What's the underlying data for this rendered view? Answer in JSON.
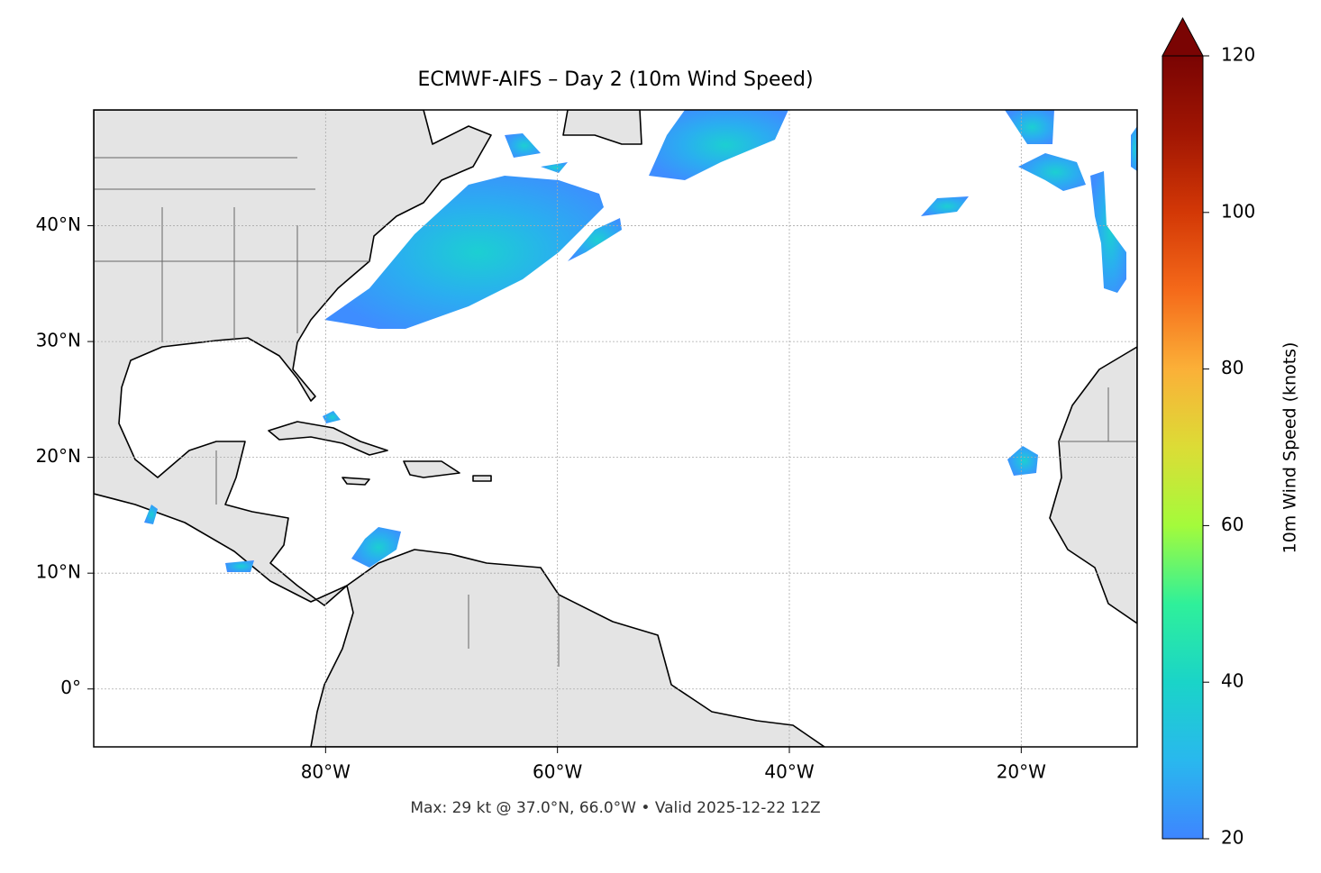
{
  "chart_data": {
    "type": "map",
    "title": "ECMWF-AIFS – Day 2 (10m Wind Speed)",
    "footer": "Max: 29 kt @ 37.0°N, 66.0°W • Valid 2025-12-22 12Z",
    "xlim": [
      -100,
      -10
    ],
    "ylim": [
      -5,
      50
    ],
    "xticks": [
      {
        "value": -80,
        "label": "80°W"
      },
      {
        "value": -60,
        "label": "60°W"
      },
      {
        "value": -40,
        "label": "40°W"
      },
      {
        "value": -20,
        "label": "20°W"
      }
    ],
    "yticks": [
      {
        "value": 0,
        "label": "0°"
      },
      {
        "value": 10,
        "label": "10°N"
      },
      {
        "value": 20,
        "label": "20°N"
      },
      {
        "value": 30,
        "label": "30°N"
      },
      {
        "value": 40,
        "label": "40°N"
      }
    ],
    "grid": true,
    "colorbar": {
      "label": "10m Wind Speed (knots)",
      "lim": [
        20,
        120
      ],
      "ticks": [
        20,
        40,
        60,
        80,
        100,
        120
      ],
      "extend": "max",
      "colors": [
        "#3e85ff",
        "#29b8ee",
        "#1ad4c8",
        "#2ff09a",
        "#a4fb3b",
        "#dcdc36",
        "#fbb038",
        "#f56a1a",
        "#d33806",
        "#a11603",
        "#7a0403"
      ]
    }
  }
}
